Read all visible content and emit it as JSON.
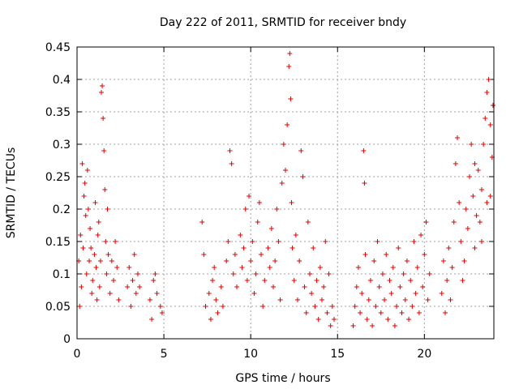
{
  "chart_data": {
    "type": "scatter",
    "title": "Day 222 of 2011, SRMTID for receiver bndy",
    "xlabel": "GPS time / hours",
    "ylabel": "SRMTID / TECUs",
    "xlim": [
      0,
      24
    ],
    "ylim": [
      0,
      0.45
    ],
    "xticks": [
      0,
      5,
      10,
      15,
      20
    ],
    "xtick_labels": [
      "0",
      "5",
      "10",
      "15",
      "20"
    ],
    "yticks": [
      0,
      0.05,
      0.1,
      0.15,
      0.2,
      0.25,
      0.3,
      0.35,
      0.4,
      0.45
    ],
    "ytick_labels": [
      "0",
      "0.05",
      "0.1",
      "0.15",
      "0.2",
      "0.25",
      "0.3",
      "0.35",
      "0.4",
      "0.45"
    ],
    "grid": true,
    "marker": "+",
    "color": "#dd0000",
    "series": [
      {
        "name": "SRMTID",
        "points": [
          [
            0.1,
            0.12
          ],
          [
            0.2,
            0.16
          ],
          [
            0.25,
            0.08
          ],
          [
            0.3,
            0.27
          ],
          [
            0.35,
            0.14
          ],
          [
            0.4,
            0.22
          ],
          [
            0.5,
            0.19
          ],
          [
            0.55,
            0.1
          ],
          [
            0.6,
            0.26
          ],
          [
            0.7,
            0.12
          ],
          [
            0.75,
            0.17
          ],
          [
            0.8,
            0.14
          ],
          [
            0.9,
            0.09
          ],
          [
            1.0,
            0.13
          ],
          [
            1.05,
            0.21
          ],
          [
            1.1,
            0.11
          ],
          [
            1.2,
            0.16
          ],
          [
            1.3,
            0.08
          ],
          [
            1.35,
            0.12
          ],
          [
            1.4,
            0.38
          ],
          [
            1.45,
            0.39
          ],
          [
            1.5,
            0.34
          ],
          [
            1.55,
            0.29
          ],
          [
            1.6,
            0.23
          ],
          [
            1.65,
            0.15
          ],
          [
            1.7,
            0.1
          ],
          [
            1.8,
            0.13
          ],
          [
            1.9,
            0.07
          ],
          [
            2.0,
            0.12
          ],
          [
            2.1,
            0.09
          ],
          [
            2.2,
            0.15
          ],
          [
            2.3,
            0.11
          ],
          [
            2.4,
            0.06
          ],
          [
            0.15,
            0.05
          ],
          [
            0.45,
            0.24
          ],
          [
            0.65,
            0.2
          ],
          [
            0.85,
            0.07
          ],
          [
            1.15,
            0.06
          ],
          [
            1.25,
            0.18
          ],
          [
            1.75,
            0.2
          ],
          [
            2.9,
            0.08
          ],
          [
            3.0,
            0.11
          ],
          [
            3.1,
            0.05
          ],
          [
            3.2,
            0.09
          ],
          [
            3.3,
            0.13
          ],
          [
            3.4,
            0.07
          ],
          [
            3.5,
            0.1
          ],
          [
            3.6,
            0.08
          ],
          [
            4.2,
            0.06
          ],
          [
            4.4,
            0.09
          ],
          [
            4.5,
            0.1
          ],
          [
            4.6,
            0.07
          ],
          [
            4.3,
            0.03
          ],
          [
            4.9,
            0.04
          ],
          [
            4.8,
            0.05
          ],
          [
            7.2,
            0.18
          ],
          [
            7.3,
            0.13
          ],
          [
            7.4,
            0.05
          ],
          [
            7.6,
            0.07
          ],
          [
            7.7,
            0.03
          ],
          [
            7.8,
            0.09
          ],
          [
            7.9,
            0.11
          ],
          [
            8.0,
            0.06
          ],
          [
            8.1,
            0.04
          ],
          [
            8.3,
            0.08
          ],
          [
            8.4,
            0.05
          ],
          [
            8.6,
            0.12
          ],
          [
            8.7,
            0.15
          ],
          [
            8.8,
            0.29
          ],
          [
            8.9,
            0.27
          ],
          [
            9.0,
            0.1
          ],
          [
            9.1,
            0.13
          ],
          [
            9.2,
            0.08
          ],
          [
            9.4,
            0.16
          ],
          [
            9.5,
            0.11
          ],
          [
            9.6,
            0.14
          ],
          [
            9.7,
            0.2
          ],
          [
            9.8,
            0.09
          ],
          [
            9.9,
            0.22
          ],
          [
            10.0,
            0.12
          ],
          [
            10.1,
            0.15
          ],
          [
            10.2,
            0.07
          ],
          [
            10.3,
            0.1
          ],
          [
            10.4,
            0.18
          ],
          [
            10.5,
            0.21
          ],
          [
            10.6,
            0.13
          ],
          [
            10.7,
            0.05
          ],
          [
            10.8,
            0.09
          ],
          [
            11.0,
            0.14
          ],
          [
            11.1,
            0.11
          ],
          [
            11.2,
            0.17
          ],
          [
            11.3,
            0.08
          ],
          [
            11.4,
            0.12
          ],
          [
            11.5,
            0.2
          ],
          [
            11.6,
            0.15
          ],
          [
            11.7,
            0.06
          ],
          [
            11.8,
            0.24
          ],
          [
            11.9,
            0.3
          ],
          [
            12.0,
            0.26
          ],
          [
            12.1,
            0.33
          ],
          [
            12.2,
            0.42
          ],
          [
            12.25,
            0.44
          ],
          [
            12.3,
            0.37
          ],
          [
            12.35,
            0.21
          ],
          [
            12.4,
            0.14
          ],
          [
            12.5,
            0.09
          ],
          [
            12.6,
            0.16
          ],
          [
            12.7,
            0.06
          ],
          [
            12.8,
            0.12
          ],
          [
            12.9,
            0.29
          ],
          [
            13.0,
            0.25
          ],
          [
            13.1,
            0.08
          ],
          [
            13.2,
            0.04
          ],
          [
            13.3,
            0.18
          ],
          [
            13.4,
            0.1
          ],
          [
            13.5,
            0.07
          ],
          [
            13.6,
            0.14
          ],
          [
            13.7,
            0.05
          ],
          [
            13.8,
            0.09
          ],
          [
            13.9,
            0.03
          ],
          [
            14.0,
            0.11
          ],
          [
            14.1,
            0.06
          ],
          [
            14.2,
            0.08
          ],
          [
            14.3,
            0.15
          ],
          [
            14.4,
            0.04
          ],
          [
            14.5,
            0.1
          ],
          [
            14.6,
            0.02
          ],
          [
            14.7,
            0.05
          ],
          [
            14.8,
            0.03
          ],
          [
            15.9,
            0.02
          ],
          [
            16.0,
            0.05
          ],
          [
            16.1,
            0.08
          ],
          [
            16.2,
            0.11
          ],
          [
            16.3,
            0.04
          ],
          [
            16.4,
            0.07
          ],
          [
            16.5,
            0.29
          ],
          [
            16.55,
            0.24
          ],
          [
            16.6,
            0.13
          ],
          [
            16.7,
            0.03
          ],
          [
            16.8,
            0.06
          ],
          [
            16.9,
            0.09
          ],
          [
            17.0,
            0.02
          ],
          [
            17.1,
            0.12
          ],
          [
            17.2,
            0.05
          ],
          [
            17.3,
            0.15
          ],
          [
            17.4,
            0.08
          ],
          [
            17.5,
            0.04
          ],
          [
            17.6,
            0.1
          ],
          [
            17.7,
            0.06
          ],
          [
            17.8,
            0.13
          ],
          [
            17.9,
            0.03
          ],
          [
            18.0,
            0.09
          ],
          [
            18.1,
            0.07
          ],
          [
            18.2,
            0.11
          ],
          [
            18.3,
            0.02
          ],
          [
            18.4,
            0.05
          ],
          [
            18.5,
            0.14
          ],
          [
            18.6,
            0.08
          ],
          [
            18.7,
            0.04
          ],
          [
            18.8,
            0.1
          ],
          [
            18.9,
            0.06
          ],
          [
            19.0,
            0.12
          ],
          [
            19.1,
            0.03
          ],
          [
            19.2,
            0.09
          ],
          [
            19.3,
            0.05
          ],
          [
            19.4,
            0.15
          ],
          [
            19.5,
            0.07
          ],
          [
            19.6,
            0.11
          ],
          [
            19.7,
            0.04
          ],
          [
            19.8,
            0.16
          ],
          [
            19.9,
            0.08
          ],
          [
            20.0,
            0.13
          ],
          [
            20.1,
            0.18
          ],
          [
            20.2,
            0.06
          ],
          [
            20.3,
            0.1
          ],
          [
            21.0,
            0.07
          ],
          [
            21.1,
            0.12
          ],
          [
            21.2,
            0.04
          ],
          [
            21.3,
            0.09
          ],
          [
            21.4,
            0.14
          ],
          [
            21.5,
            0.06
          ],
          [
            21.6,
            0.11
          ],
          [
            21.7,
            0.18
          ],
          [
            21.8,
            0.27
          ],
          [
            21.9,
            0.31
          ],
          [
            22.0,
            0.21
          ],
          [
            22.1,
            0.15
          ],
          [
            22.2,
            0.09
          ],
          [
            22.3,
            0.12
          ],
          [
            22.4,
            0.2
          ],
          [
            22.5,
            0.17
          ],
          [
            22.6,
            0.25
          ],
          [
            22.7,
            0.3
          ],
          [
            22.8,
            0.22
          ],
          [
            22.9,
            0.14
          ],
          [
            23.0,
            0.19
          ],
          [
            23.1,
            0.26
          ],
          [
            23.2,
            0.18
          ],
          [
            23.3,
            0.23
          ],
          [
            23.4,
            0.3
          ],
          [
            23.5,
            0.34
          ],
          [
            23.6,
            0.38
          ],
          [
            23.7,
            0.4
          ],
          [
            23.8,
            0.33
          ],
          [
            23.9,
            0.28
          ],
          [
            23.95,
            0.36
          ],
          [
            23.6,
            0.21
          ],
          [
            23.3,
            0.15
          ],
          [
            22.9,
            0.27
          ],
          [
            23.8,
            0.22
          ]
        ]
      }
    ]
  }
}
